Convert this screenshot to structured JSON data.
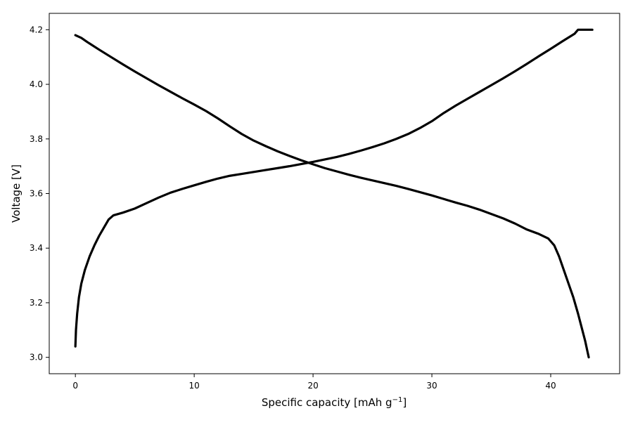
{
  "chart_data": {
    "type": "line",
    "title": "",
    "xlabel": "Specific capacity [mAh g",
    "xlabel_superscript": "−1",
    "xlabel_suffix": "]",
    "ylabel": "Voltage [V]",
    "xlim": [
      -2.2,
      45.8
    ],
    "ylim": [
      2.94,
      4.26
    ],
    "xticks": [
      0,
      10,
      20,
      30,
      40
    ],
    "yticks": [
      3.0,
      3.2,
      3.4,
      3.6,
      3.8,
      4.0,
      4.2
    ],
    "xtick_labels": [
      "0",
      "10",
      "20",
      "30",
      "40"
    ],
    "ytick_labels": [
      "3.0",
      "3.2",
      "3.4",
      "3.6",
      "3.8",
      "4.0",
      "4.2"
    ],
    "grid": false,
    "line_color": "#000000",
    "series": [
      {
        "x": [
          0.0,
          0.05,
          0.15,
          0.3,
          0.5,
          0.8,
          1.2,
          1.6,
          2.0,
          2.4,
          2.8,
          3.2,
          4.0,
          5.0,
          6.0,
          7.0,
          8.0,
          9.0,
          10.0,
          11.0,
          12.0,
          13.0,
          14.0,
          15.0,
          16.0,
          17.0,
          18.0,
          19.0,
          20.0,
          21.0,
          22.0,
          23.0,
          24.0,
          25.0,
          26.0,
          27.0,
          28.0,
          29.0,
          30.0,
          31.0,
          32.0,
          33.0,
          34.0,
          35.0,
          36.0,
          37.0,
          38.0,
          39.0,
          40.0,
          41.0,
          42.0,
          42.3,
          42.6,
          43.0,
          43.5
        ],
        "y": [
          3.04,
          3.1,
          3.16,
          3.22,
          3.27,
          3.32,
          3.37,
          3.41,
          3.445,
          3.475,
          3.505,
          3.52,
          3.53,
          3.545,
          3.565,
          3.585,
          3.603,
          3.617,
          3.63,
          3.643,
          3.655,
          3.665,
          3.672,
          3.679,
          3.686,
          3.693,
          3.7,
          3.708,
          3.716,
          3.725,
          3.734,
          3.745,
          3.757,
          3.77,
          3.784,
          3.8,
          3.818,
          3.84,
          3.865,
          3.895,
          3.922,
          3.947,
          3.972,
          3.997,
          4.022,
          4.048,
          4.075,
          4.103,
          4.13,
          4.158,
          4.185,
          4.2,
          4.2,
          4.2,
          4.2
        ]
      },
      {
        "x": [
          0.0,
          0.5,
          1.0,
          2.0,
          3.0,
          4.0,
          5.0,
          6.0,
          7.0,
          8.0,
          9.0,
          10.0,
          11.0,
          12.0,
          13.0,
          14.0,
          15.0,
          16.0,
          17.0,
          18.0,
          19.0,
          20.0,
          21.0,
          22.0,
          23.0,
          24.0,
          25.0,
          26.0,
          27.0,
          28.0,
          29.0,
          30.0,
          31.0,
          32.0,
          33.0,
          34.0,
          35.0,
          36.0,
          37.0,
          38.0,
          39.0,
          39.8,
          40.3,
          40.7,
          41.1,
          41.5,
          41.9,
          42.3,
          42.6,
          42.9,
          43.1,
          43.2
        ],
        "y": [
          4.18,
          4.17,
          4.155,
          4.127,
          4.1,
          4.073,
          4.047,
          4.022,
          3.997,
          3.973,
          3.949,
          3.926,
          3.902,
          3.875,
          3.846,
          3.818,
          3.794,
          3.774,
          3.755,
          3.738,
          3.722,
          3.707,
          3.693,
          3.681,
          3.669,
          3.658,
          3.648,
          3.638,
          3.628,
          3.617,
          3.605,
          3.593,
          3.58,
          3.567,
          3.555,
          3.541,
          3.525,
          3.509,
          3.49,
          3.468,
          3.452,
          3.435,
          3.41,
          3.37,
          3.32,
          3.27,
          3.22,
          3.16,
          3.11,
          3.06,
          3.02,
          3.0
        ]
      }
    ]
  }
}
